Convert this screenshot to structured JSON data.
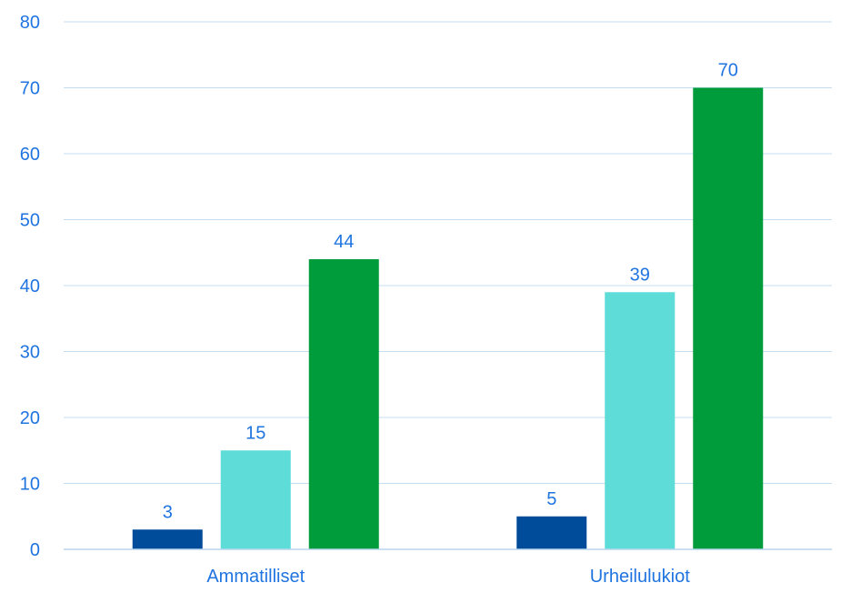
{
  "chart_data": {
    "type": "bar",
    "categories": [
      "Ammatilliset",
      "Urheilulukiot"
    ],
    "series": [
      {
        "values": [
          3,
          5
        ]
      },
      {
        "values": [
          15,
          39
        ]
      },
      {
        "values": [
          44,
          70
        ]
      }
    ],
    "ylim": [
      0,
      80
    ],
    "yticks": [
      "0",
      "10",
      "20",
      "30",
      "40",
      "50",
      "60",
      "70",
      "80"
    ],
    "grid": true,
    "legend": "none",
    "colors": {
      "series": [
        "#004C9A",
        "#5EDCD8",
        "#009B3A"
      ],
      "text": "#1F74E0",
      "grid": "#C5DDF0",
      "axis": "#B9D6EE"
    }
  }
}
